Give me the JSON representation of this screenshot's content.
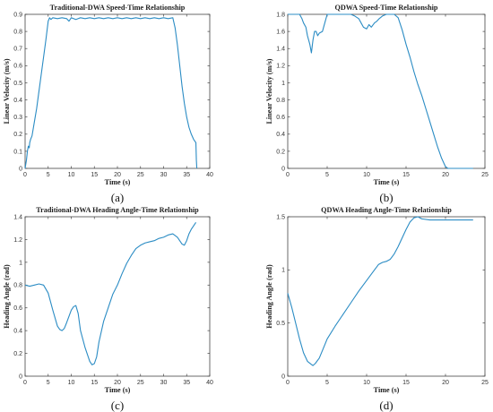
{
  "chart_data": [
    {
      "id": "a",
      "type": "line",
      "title": "Traditional-DWA Speed-Time Relationship",
      "xlabel": "Time (s)",
      "ylabel": "Linear Velocity (m/s)",
      "xlim": [
        0,
        40
      ],
      "ylim": [
        0,
        0.9
      ],
      "xticks": [
        0,
        5,
        10,
        15,
        20,
        25,
        30,
        35,
        40
      ],
      "yticks": [
        0,
        0.1,
        0.2,
        0.3,
        0.4,
        0.5,
        0.6,
        0.7,
        0.8,
        0.9
      ],
      "tick_labels_x": [
        "0",
        "5",
        "10",
        "15",
        "20",
        "25",
        "30",
        "35",
        "40"
      ],
      "tick_labels_y": [
        "0",
        "0.1",
        "0.2",
        "0.3",
        "0.4",
        "0.5",
        "0.6",
        "0.7",
        "0.8",
        "0.9"
      ],
      "panel_label": "(a)",
      "series": [
        {
          "x": [
            0,
            0.3,
            0.5,
            0.7,
            0.9,
            1.0,
            1.2,
            1.5,
            2,
            2.5,
            3,
            3.5,
            4,
            4.5,
            5,
            5.3,
            5.6,
            6,
            7,
            8,
            9,
            9.5,
            10,
            11,
            11.5,
            12,
            13,
            14,
            15,
            16,
            17,
            18,
            19,
            20,
            21,
            22,
            23,
            24,
            25,
            26,
            27,
            28,
            29,
            30,
            31,
            32,
            32.5,
            33,
            33.5,
            34,
            34.5,
            35,
            35.5,
            36,
            36.5,
            37,
            37.1,
            37.2
          ],
          "y": [
            0,
            0.05,
            0.1,
            0.13,
            0.12,
            0.15,
            0.17,
            0.19,
            0.27,
            0.35,
            0.45,
            0.55,
            0.65,
            0.75,
            0.86,
            0.88,
            0.87,
            0.88,
            0.875,
            0.88,
            0.875,
            0.86,
            0.88,
            0.87,
            0.875,
            0.88,
            0.875,
            0.88,
            0.875,
            0.88,
            0.875,
            0.88,
            0.875,
            0.88,
            0.875,
            0.88,
            0.875,
            0.88,
            0.875,
            0.88,
            0.875,
            0.88,
            0.875,
            0.88,
            0.875,
            0.88,
            0.82,
            0.72,
            0.6,
            0.48,
            0.38,
            0.3,
            0.24,
            0.2,
            0.17,
            0.15,
            0.05,
            0
          ]
        }
      ]
    },
    {
      "id": "b",
      "type": "line",
      "title": "QDWA Speed-Time Relationship",
      "xlabel": "Time (s)",
      "ylabel": "Linear Velocity (m/s)",
      "xlim": [
        0,
        25
      ],
      "ylim": [
        0,
        1.8
      ],
      "xticks": [
        0,
        5,
        10,
        15,
        20,
        25
      ],
      "yticks": [
        0,
        0.2,
        0.4,
        0.6,
        0.8,
        1,
        1.2,
        1.4,
        1.6,
        1.8
      ],
      "tick_labels_x": [
        "0",
        "5",
        "10",
        "15",
        "20",
        "25"
      ],
      "tick_labels_y": [
        "0",
        "0.2",
        "0.4",
        "0.6",
        "0.8",
        "1",
        "1.2",
        "1.4",
        "1.6",
        "1.8"
      ],
      "panel_label": "(b)",
      "series": [
        {
          "x": [
            0,
            1.5,
            1.8,
            2.0,
            2.3,
            2.5,
            2.8,
            3.0,
            3.2,
            3.4,
            3.6,
            3.8,
            4.0,
            4.4,
            4.7,
            5.0,
            5.5,
            6,
            7,
            8,
            8.5,
            9,
            9.3,
            9.6,
            10,
            10.3,
            10.6,
            11,
            11.3,
            11.6,
            12,
            12.5,
            13,
            13.5,
            14,
            14.5,
            15,
            15.5,
            16,
            16.5,
            17,
            17.5,
            18,
            18.5,
            19,
            19.5,
            20,
            20.3,
            21,
            22,
            23,
            23.5
          ],
          "y": [
            1.8,
            1.8,
            1.75,
            1.7,
            1.65,
            1.55,
            1.45,
            1.35,
            1.5,
            1.6,
            1.6,
            1.55,
            1.58,
            1.6,
            1.7,
            1.8,
            1.8,
            1.8,
            1.8,
            1.8,
            1.78,
            1.75,
            1.7,
            1.65,
            1.63,
            1.68,
            1.65,
            1.7,
            1.72,
            1.75,
            1.78,
            1.8,
            1.8,
            1.8,
            1.76,
            1.62,
            1.45,
            1.3,
            1.13,
            0.98,
            0.85,
            0.7,
            0.55,
            0.4,
            0.25,
            0.12,
            0.02,
            0,
            0,
            0,
            0,
            0
          ]
        }
      ]
    },
    {
      "id": "c",
      "type": "line",
      "title": "Traditional-DWA Heading Angle-Time Relationship",
      "xlabel": "Time (s)",
      "ylabel": "Heading Angle (rad)",
      "xlim": [
        0,
        40
      ],
      "ylim": [
        0,
        1.4
      ],
      "xticks": [
        0,
        5,
        10,
        15,
        20,
        25,
        30,
        35,
        40
      ],
      "yticks": [
        0,
        0.2,
        0.4,
        0.6,
        0.8,
        1,
        1.2,
        1.4
      ],
      "tick_labels_x": [
        "0",
        "5",
        "10",
        "15",
        "20",
        "25",
        "30",
        "35",
        "40"
      ],
      "tick_labels_y": [
        "0",
        "0.2",
        "0.4",
        "0.6",
        "0.8",
        "1",
        "1.2",
        "1.4"
      ],
      "panel_label": "(c)",
      "series": [
        {
          "x": [
            0,
            1,
            2,
            3,
            4,
            5,
            6,
            7,
            7.5,
            8,
            8.5,
            9,
            10,
            10.5,
            11,
            11.5,
            12,
            13,
            14,
            14.5,
            15,
            15.5,
            16,
            17,
            18,
            19,
            20,
            21,
            22,
            23,
            24,
            25,
            26,
            27,
            28,
            29,
            30,
            31,
            32,
            33,
            34,
            34.5,
            35,
            35.5,
            36,
            37
          ],
          "y": [
            0.8,
            0.79,
            0.8,
            0.81,
            0.8,
            0.73,
            0.58,
            0.44,
            0.41,
            0.4,
            0.42,
            0.47,
            0.58,
            0.61,
            0.62,
            0.55,
            0.4,
            0.25,
            0.13,
            0.1,
            0.11,
            0.17,
            0.3,
            0.48,
            0.6,
            0.72,
            0.8,
            0.9,
            0.99,
            1.06,
            1.12,
            1.15,
            1.17,
            1.18,
            1.19,
            1.21,
            1.22,
            1.24,
            1.25,
            1.22,
            1.16,
            1.15,
            1.19,
            1.25,
            1.29,
            1.35
          ]
        }
      ]
    },
    {
      "id": "d",
      "type": "line",
      "title": "QDWA Heading Angle-Time Relationship",
      "xlabel": "Time (s)",
      "ylabel": "Heading Angle (rad)",
      "xlim": [
        0,
        25
      ],
      "ylim": [
        0,
        1.5
      ],
      "xticks": [
        0,
        5,
        10,
        15,
        20,
        25
      ],
      "yticks": [
        0,
        0.5,
        1,
        1.5
      ],
      "tick_labels_x": [
        "0",
        "5",
        "10",
        "15",
        "20",
        "25"
      ],
      "tick_labels_y": [
        "0",
        "0.5",
        "1",
        "1.5"
      ],
      "panel_label": "(d)",
      "series": [
        {
          "x": [
            0,
            0.5,
            1,
            1.5,
            2,
            2.5,
            3,
            3.2,
            3.5,
            4,
            4.5,
            5,
            6,
            7,
            8,
            9,
            10,
            11,
            11.5,
            12,
            12.5,
            13,
            13.5,
            14,
            14.5,
            15,
            15.5,
            16,
            16.5,
            17,
            18,
            19,
            20,
            21,
            22,
            23,
            23.5
          ],
          "y": [
            0.78,
            0.65,
            0.5,
            0.35,
            0.22,
            0.14,
            0.11,
            0.1,
            0.12,
            0.17,
            0.26,
            0.35,
            0.47,
            0.58,
            0.69,
            0.8,
            0.9,
            1.0,
            1.05,
            1.07,
            1.08,
            1.1,
            1.15,
            1.22,
            1.3,
            1.38,
            1.45,
            1.49,
            1.5,
            1.48,
            1.47,
            1.47,
            1.47,
            1.47,
            1.47,
            1.47,
            1.47
          ]
        }
      ]
    }
  ],
  "colors": {
    "series": "#2b8cc4",
    "axes": "#444444"
  }
}
